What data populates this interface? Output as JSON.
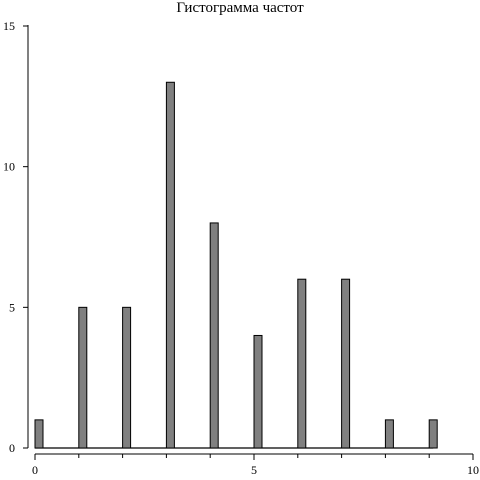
{
  "chart_data": {
    "type": "bar",
    "title": "Гистограмма частот",
    "xlabel": "",
    "ylabel": "",
    "x": [
      0,
      1,
      2,
      3,
      4,
      5,
      6,
      7,
      8,
      9
    ],
    "values": [
      1,
      5,
      5,
      13,
      8,
      4,
      6,
      6,
      1,
      1
    ],
    "xlim": [
      0,
      10
    ],
    "ylim": [
      0,
      15
    ],
    "x_ticks": [
      0,
      5,
      10
    ],
    "x_minor_ticks": [
      1,
      2,
      3,
      4,
      6,
      7,
      8,
      9
    ],
    "y_ticks": [
      0,
      5,
      10,
      15
    ],
    "grid": false,
    "legend": "none",
    "bar_color": "#808080"
  }
}
